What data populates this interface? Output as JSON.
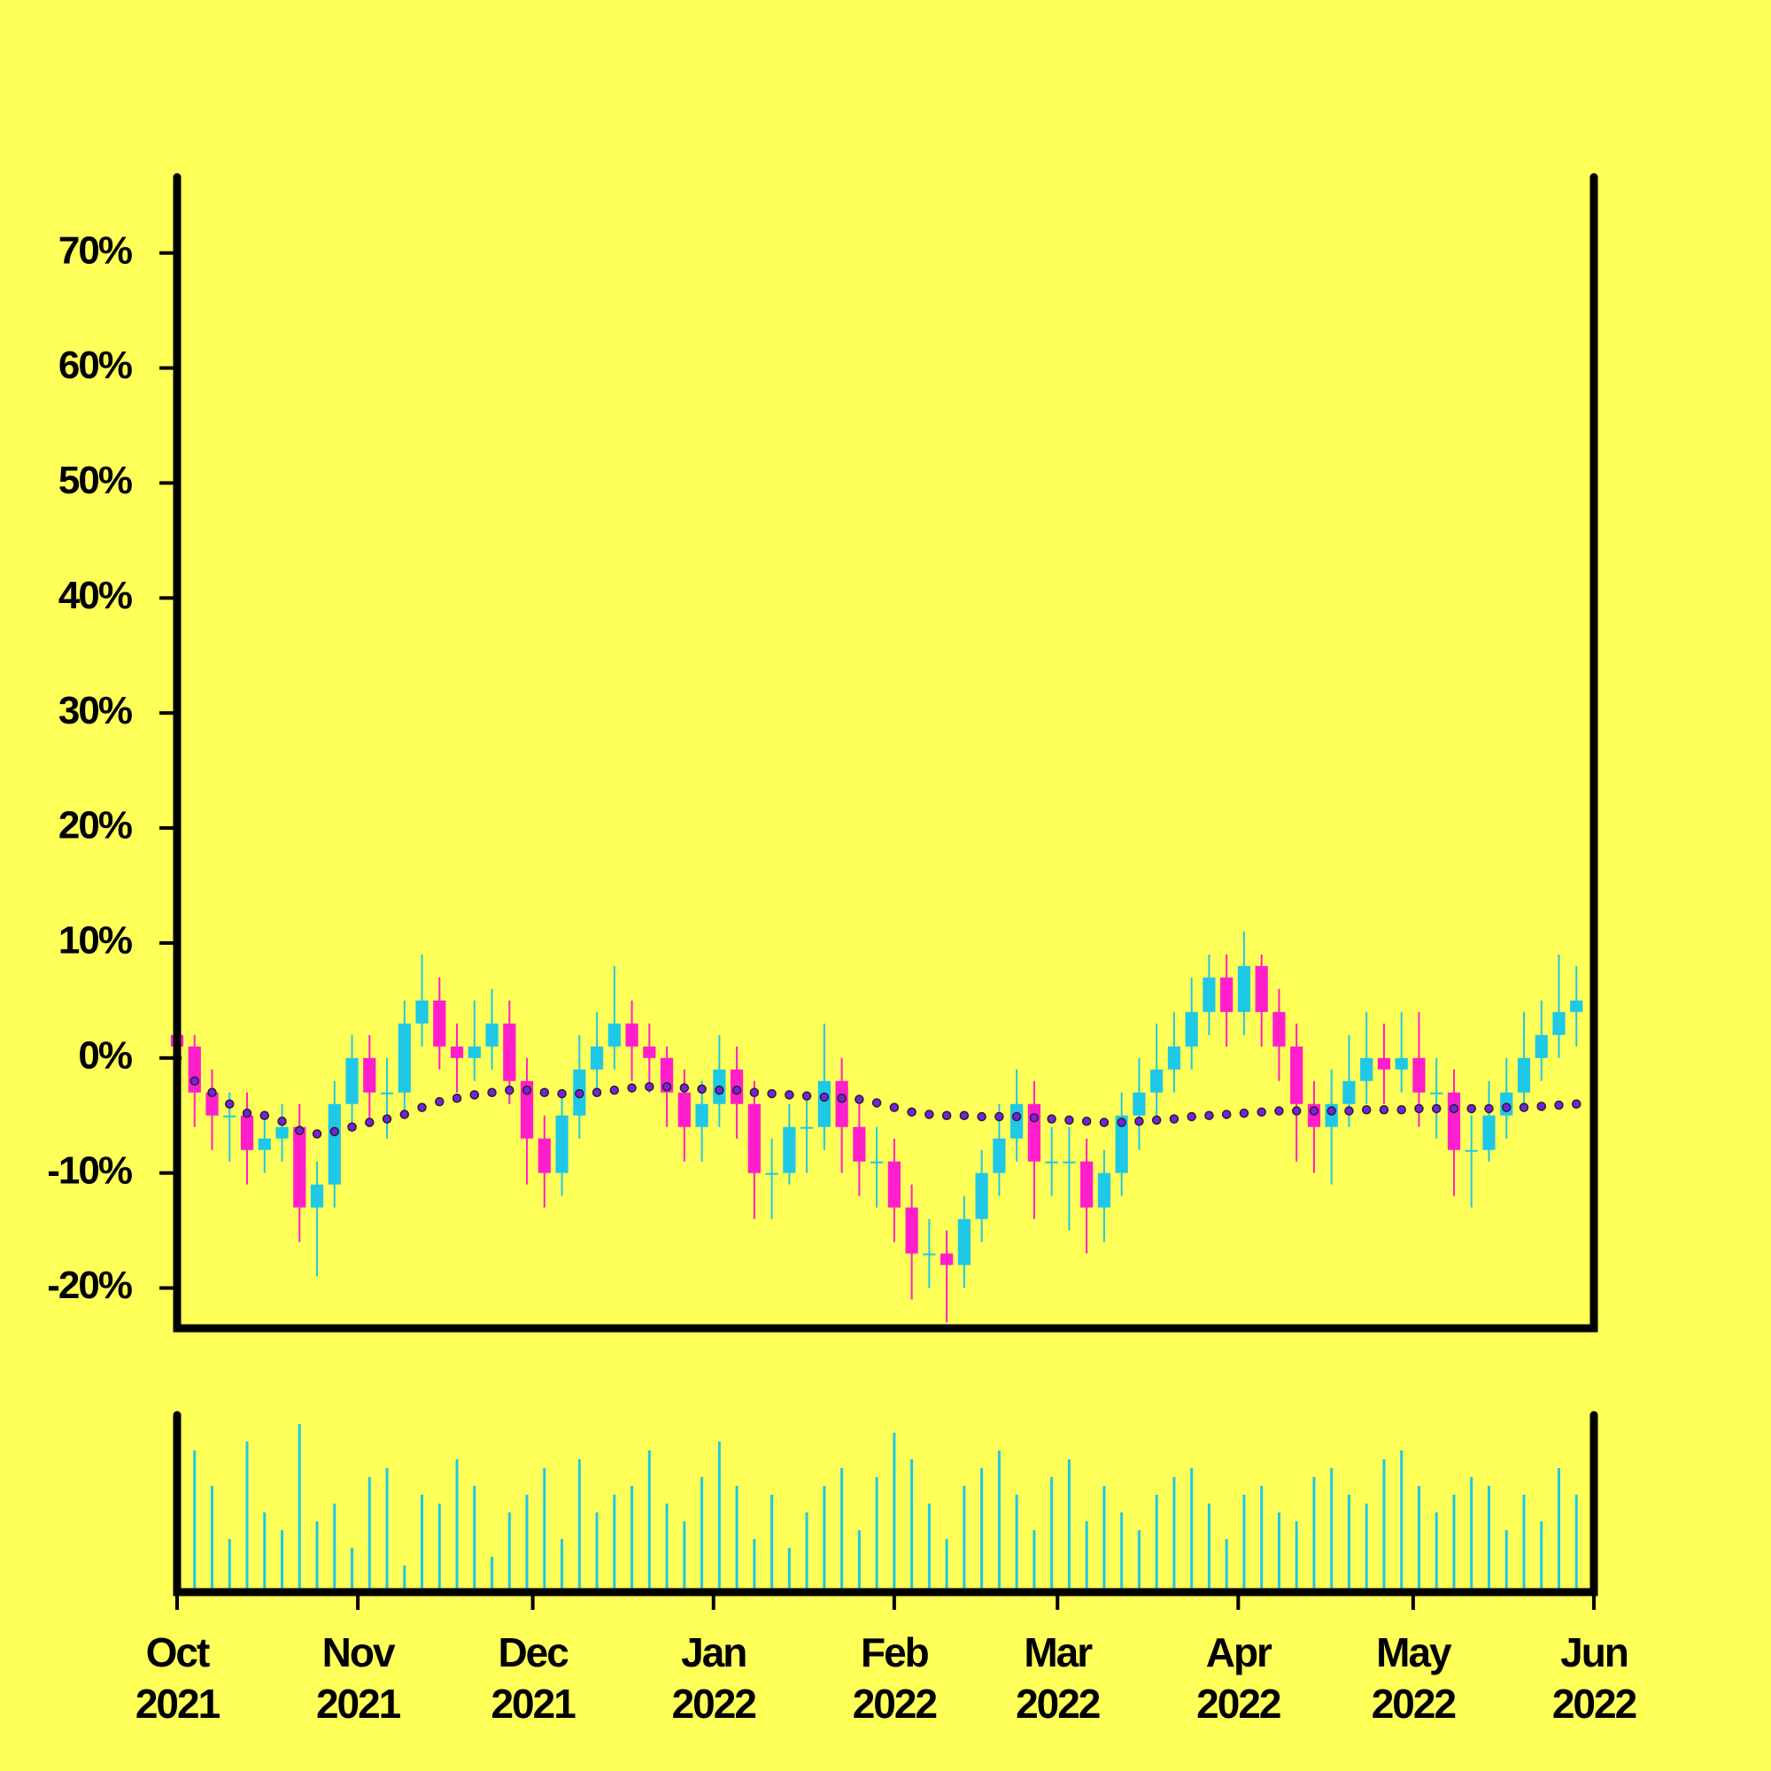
{
  "chart_data": {
    "type": "candlestick",
    "x": [
      0,
      3,
      6,
      9,
      12,
      15,
      18,
      21,
      24,
      27,
      30,
      33,
      36,
      39,
      42,
      45,
      48,
      51,
      54,
      57,
      60,
      63,
      66,
      69,
      72,
      75,
      78,
      81,
      84,
      87,
      90,
      93,
      96,
      99,
      102,
      105,
      108,
      111,
      114,
      117,
      120,
      123,
      126,
      129,
      132,
      135,
      138,
      141,
      144,
      147,
      150,
      153,
      156,
      159,
      162,
      165,
      168,
      171,
      174,
      177,
      180,
      183,
      186,
      189,
      192,
      195,
      198,
      201,
      204,
      207,
      210,
      213,
      216,
      219,
      222,
      225,
      228,
      231,
      234,
      237,
      240
    ],
    "open": [
      2,
      1,
      -3,
      -5,
      -5,
      -8,
      -7,
      -6,
      -13,
      -11,
      -4,
      0,
      -3,
      -3,
      3,
      5,
      1,
      0,
      1,
      3,
      -2,
      -7,
      -10,
      -5,
      -1,
      1,
      3,
      1,
      0,
      -3,
      -6,
      -4,
      -1,
      -4,
      -10,
      -10,
      -6,
      -6,
      -2,
      -6,
      -9,
      -9,
      -13,
      -17,
      -17,
      -18,
      -14,
      -10,
      -7,
      -4,
      -9,
      -9,
      -9,
      -13,
      -10,
      -5,
      -3,
      -1,
      1,
      4,
      7,
      4,
      8,
      4,
      1,
      -4,
      -6,
      -4,
      -2,
      0,
      -1,
      0,
      -3,
      -3,
      -8,
      -8,
      -5,
      -3,
      0,
      2,
      4
    ],
    "high": [
      5,
      2,
      -1,
      -3,
      -3,
      -5,
      -4,
      -4,
      -9,
      -2,
      2,
      2,
      0,
      5,
      9,
      7,
      3,
      5,
      6,
      5,
      0,
      -5,
      -3,
      2,
      4,
      8,
      5,
      3,
      1,
      -1,
      -2,
      2,
      1,
      -2,
      -7,
      -4,
      -3,
      3,
      0,
      -4,
      -6,
      -7,
      -11,
      -14,
      -15,
      -12,
      -8,
      -4,
      -1,
      -2,
      -6,
      -6,
      -7,
      -8,
      -3,
      0,
      3,
      4,
      7,
      9,
      9,
      11,
      9,
      6,
      3,
      -2,
      -1,
      2,
      4,
      3,
      4,
      4,
      0,
      -1,
      -5,
      -2,
      0,
      4,
      5,
      9,
      8
    ],
    "low": [
      -1,
      -6,
      -8,
      -9,
      -11,
      -10,
      -9,
      -16,
      -19,
      -13,
      -6,
      -6,
      -7,
      -5,
      1,
      -1,
      -3,
      -2,
      -1,
      -4,
      -11,
      -13,
      -12,
      -7,
      -3,
      -1,
      -2,
      -3,
      -6,
      -9,
      -9,
      -6,
      -7,
      -14,
      -14,
      -11,
      -10,
      -8,
      -10,
      -12,
      -13,
      -16,
      -21,
      -20,
      -23,
      -20,
      -16,
      -12,
      -9,
      -14,
      -12,
      -15,
      -17,
      -16,
      -12,
      -8,
      -5,
      -3,
      -1,
      2,
      1,
      2,
      1,
      -2,
      -9,
      -10,
      -11,
      -6,
      -4,
      -4,
      -3,
      -6,
      -7,
      -12,
      -13,
      -9,
      -7,
      -4,
      -2,
      0,
      1
    ],
    "close": [
      1,
      -3,
      -5,
      -5,
      -8,
      -7,
      -6,
      -13,
      -11,
      -4,
      0,
      -3,
      -3,
      3,
      5,
      1,
      0,
      1,
      3,
      -2,
      -7,
      -10,
      -5,
      -1,
      1,
      3,
      1,
      0,
      -3,
      -6,
      -4,
      -1,
      -4,
      -10,
      -10,
      -6,
      -6,
      -2,
      -6,
      -9,
      -9,
      -13,
      -17,
      -17,
      -18,
      -14,
      -10,
      -7,
      -4,
      -9,
      -9,
      -9,
      -13,
      -10,
      -5,
      -3,
      -1,
      1,
      4,
      7,
      4,
      8,
      4,
      1,
      -4,
      -6,
      -4,
      -2,
      0,
      -1,
      0,
      -3,
      -3,
      -8,
      -8,
      -5,
      -3,
      0,
      2,
      4,
      5
    ],
    "moving_average": [
      0,
      -2,
      -3,
      -4,
      -4.8,
      -5,
      -5.5,
      -6.3,
      -6.6,
      -6.4,
      -6,
      -5.6,
      -5.3,
      -4.9,
      -4.3,
      -3.8,
      -3.5,
      -3.2,
      -3,
      -2.8,
      -2.8,
      -3,
      -3.1,
      -3.1,
      -3,
      -2.8,
      -2.6,
      -2.5,
      -2.5,
      -2.6,
      -2.7,
      -2.8,
      -2.8,
      -3,
      -3.1,
      -3.2,
      -3.3,
      -3.4,
      -3.5,
      -3.6,
      -3.9,
      -4.3,
      -4.7,
      -4.9,
      -5,
      -5,
      -5.1,
      -5.1,
      -5.1,
      -5.2,
      -5.3,
      -5.4,
      -5.5,
      -5.6,
      -5.6,
      -5.5,
      -5.4,
      -5.3,
      -5.1,
      -5,
      -4.9,
      -4.8,
      -4.7,
      -4.6,
      -4.6,
      -4.6,
      -4.6,
      -4.6,
      -4.5,
      -4.5,
      -4.5,
      -4.4,
      -4.4,
      -4.4,
      -4.4,
      -4.4,
      -4.3,
      -4.3,
      -4.2,
      -4.1,
      -4
    ],
    "volume": [
      38,
      80,
      60,
      30,
      85,
      45,
      35,
      95,
      40,
      50,
      25,
      65,
      70,
      15,
      55,
      50,
      75,
      60,
      20,
      45,
      55,
      70,
      30,
      75,
      45,
      55,
      60,
      80,
      50,
      40,
      65,
      85,
      60,
      30,
      55,
      25,
      45,
      60,
      70,
      35,
      65,
      90,
      75,
      50,
      30,
      60,
      70,
      80,
      55,
      35,
      65,
      75,
      40,
      60,
      45,
      35,
      55,
      65,
      70,
      50,
      30,
      55,
      60,
      45,
      40,
      65,
      70,
      55,
      50,
      75,
      80,
      60,
      45,
      55,
      65,
      60,
      35,
      55,
      40,
      70,
      55
    ],
    "up_color": "#1ec8e6",
    "down_color": "#ff1ecb",
    "ma_color": "#7a1fe0",
    "volume_color": "#1ec8e6",
    "xlim": [
      0,
      243
    ],
    "xticks": [
      {
        "value": 0,
        "label": "Oct\n2021"
      },
      {
        "value": 31,
        "label": "Nov\n2021"
      },
      {
        "value": 61,
        "label": "Dec\n2021"
      },
      {
        "value": 92,
        "label": "Jan\n2022"
      },
      {
        "value": 123,
        "label": "Feb\n2022"
      },
      {
        "value": 151,
        "label": "Mar\n2022"
      },
      {
        "value": 182,
        "label": "Apr\n2022"
      },
      {
        "value": 212,
        "label": "May\n2022"
      },
      {
        "value": 243,
        "label": "Jun\n2022"
      }
    ],
    "ylim": [
      -23.5,
      76.6
    ],
    "yticks": [
      {
        "value": -20,
        "label": "-20%"
      },
      {
        "value": -10,
        "label": "-10%"
      },
      {
        "value": 0,
        "label": "0%"
      },
      {
        "value": 10,
        "label": "10%"
      },
      {
        "value": 20,
        "label": "20%"
      },
      {
        "value": 30,
        "label": "30%"
      },
      {
        "value": 40,
        "label": "40%"
      },
      {
        "value": 50,
        "label": "50%"
      },
      {
        "value": 60,
        "label": "60%"
      },
      {
        "value": 70,
        "label": "70%"
      }
    ],
    "volume_ylim": [
      0,
      100
    ]
  }
}
